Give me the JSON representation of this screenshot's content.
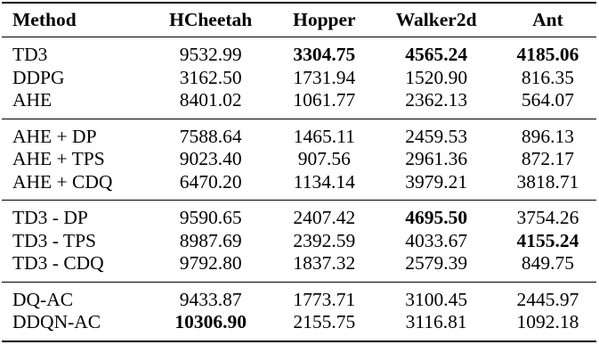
{
  "table": {
    "columns": [
      "Method",
      "HCheetah",
      "Hopper",
      "Walker2d",
      "Ant"
    ],
    "groups": [
      [
        {
          "method": "TD3",
          "values": [
            "9532.99",
            "3304.75",
            "4565.24",
            "4185.06"
          ],
          "bold": [
            false,
            true,
            true,
            true
          ]
        },
        {
          "method": "DDPG",
          "values": [
            "3162.50",
            "1731.94",
            "1520.90",
            "816.35"
          ],
          "bold": [
            false,
            false,
            false,
            false
          ]
        },
        {
          "method": "AHE",
          "values": [
            "8401.02",
            "1061.77",
            "2362.13",
            "564.07"
          ],
          "bold": [
            false,
            false,
            false,
            false
          ]
        }
      ],
      [
        {
          "method": "AHE + DP",
          "values": [
            "7588.64",
            "1465.11",
            "2459.53",
            "896.13"
          ],
          "bold": [
            false,
            false,
            false,
            false
          ]
        },
        {
          "method": "AHE + TPS",
          "values": [
            "9023.40",
            "907.56",
            "2961.36",
            "872.17"
          ],
          "bold": [
            false,
            false,
            false,
            false
          ]
        },
        {
          "method": "AHE + CDQ",
          "values": [
            "6470.20",
            "1134.14",
            "3979.21",
            "3818.71"
          ],
          "bold": [
            false,
            false,
            false,
            false
          ]
        }
      ],
      [
        {
          "method": "TD3 - DP",
          "values": [
            "9590.65",
            "2407.42",
            "4695.50",
            "3754.26"
          ],
          "bold": [
            false,
            false,
            true,
            false
          ]
        },
        {
          "method": "TD3 - TPS",
          "values": [
            "8987.69",
            "2392.59",
            "4033.67",
            "4155.24"
          ],
          "bold": [
            false,
            false,
            false,
            true
          ]
        },
        {
          "method": "TD3 - CDQ",
          "values": [
            "9792.80",
            "1837.32",
            "2579.39",
            "849.75"
          ],
          "bold": [
            false,
            false,
            false,
            false
          ]
        }
      ],
      [
        {
          "method": "DQ-AC",
          "values": [
            "9433.87",
            "1773.71",
            "3100.45",
            "2445.97"
          ],
          "bold": [
            false,
            false,
            false,
            false
          ]
        },
        {
          "method": "DDQN-AC",
          "values": [
            "10306.90",
            "2155.75",
            "3116.81",
            "1092.18"
          ],
          "bold": [
            true,
            false,
            false,
            false
          ]
        }
      ]
    ]
  }
}
